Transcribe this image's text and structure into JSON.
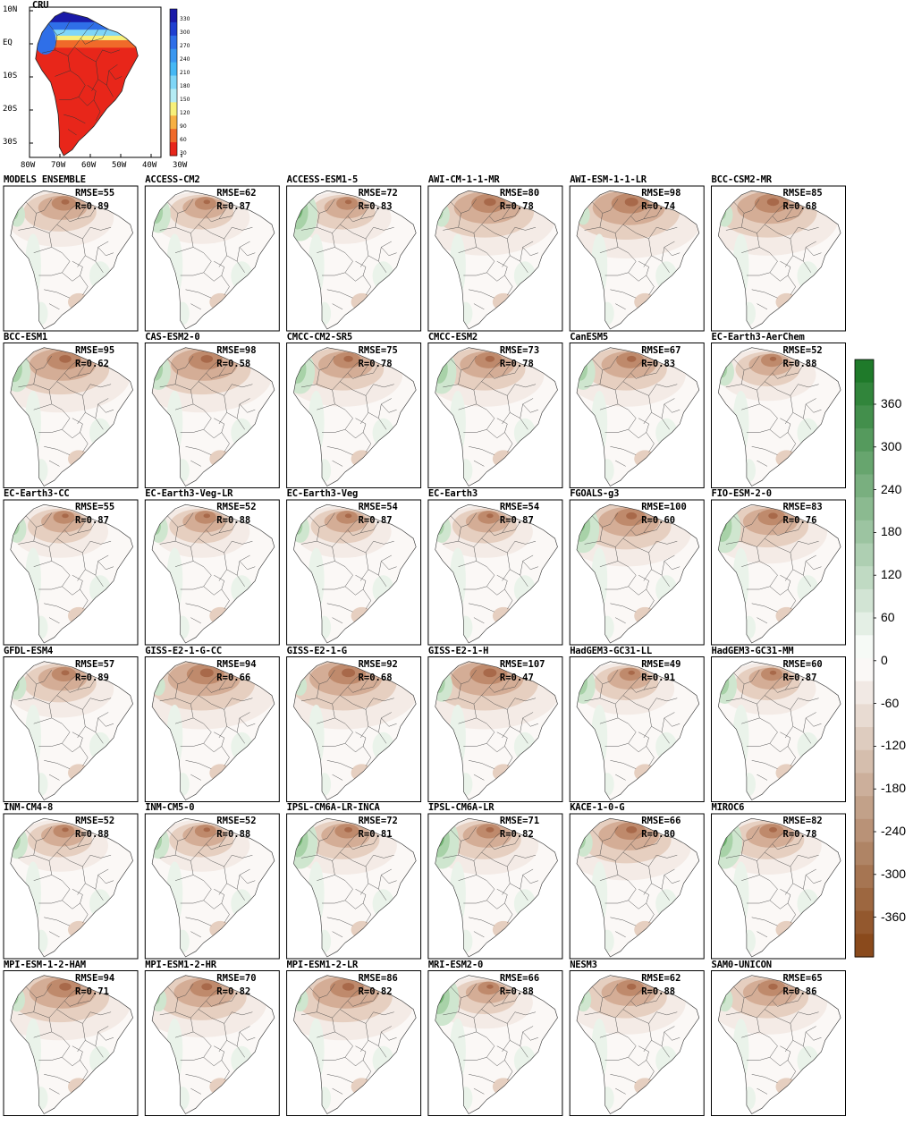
{
  "reference": {
    "title": "CRU",
    "lat_labels": [
      "10N",
      "EQ",
      "10S",
      "20S",
      "30S"
    ],
    "lon_labels": [
      "80W",
      "70W",
      "60W",
      "50W",
      "40W",
      "30W"
    ],
    "colorbar_labels": [
      "330",
      "300",
      "270",
      "240",
      "210",
      "180",
      "150",
      "120",
      "90",
      "60",
      "30"
    ],
    "colorbar_colors": [
      "#1a1aa8",
      "#1f3fd0",
      "#2f6fe8",
      "#3a97f0",
      "#45b8f5",
      "#7fd6f7",
      "#b5ecf5",
      "#f7f07a",
      "#f7b043",
      "#f06a2a",
      "#e8261a"
    ]
  },
  "models": [
    {
      "name": "MODELS ENSEMBLE",
      "rmse": "RMSE=55",
      "r": "R=0.89",
      "dry": 0.6,
      "wet": 0.3
    },
    {
      "name": "ACCESS-CM2",
      "rmse": "RMSE=62",
      "r": "R=0.87",
      "dry": 0.5,
      "wet": 0.6
    },
    {
      "name": "ACCESS-ESM1-5",
      "rmse": "RMSE=72",
      "r": "R=0.83",
      "dry": 0.5,
      "wet": 1.0
    },
    {
      "name": "AWI-CM-1-1-MR",
      "rmse": "RMSE=80",
      "r": "R=0.78",
      "dry": 0.9,
      "wet": 0.3
    },
    {
      "name": "AWI-ESM-1-1-LR",
      "rmse": "RMSE=98",
      "r": "R=0.74",
      "dry": 1.0,
      "wet": 0.2
    },
    {
      "name": "BCC-CSM2-MR",
      "rmse": "RMSE=85",
      "r": "R=0.68",
      "dry": 0.9,
      "wet": 0.3
    },
    {
      "name": "BCC-ESM1",
      "rmse": "RMSE=95",
      "r": "R=0.62",
      "dry": 0.9,
      "wet": 0.7
    },
    {
      "name": "CAS-ESM2-0",
      "rmse": "RMSE=98",
      "r": "R=0.58",
      "dry": 0.9,
      "wet": 0.6
    },
    {
      "name": "CMCC-CM2-SR5",
      "rmse": "RMSE=75",
      "r": "R=0.78",
      "dry": 0.7,
      "wet": 0.8
    },
    {
      "name": "CMCC-ESM2",
      "rmse": "RMSE=73",
      "r": "R=0.78",
      "dry": 0.7,
      "wet": 0.8
    },
    {
      "name": "CanESM5",
      "rmse": "RMSE=67",
      "r": "R=0.83",
      "dry": 0.7,
      "wet": 0.6
    },
    {
      "name": "EC-Earth3-AerChem",
      "rmse": "RMSE=52",
      "r": "R=0.88",
      "dry": 0.5,
      "wet": 0.4
    },
    {
      "name": "EC-Earth3-CC",
      "rmse": "RMSE=55",
      "r": "R=0.87",
      "dry": 0.5,
      "wet": 0.4
    },
    {
      "name": "EC-Earth3-Veg-LR",
      "rmse": "RMSE=52",
      "r": "R=0.88",
      "dry": 0.5,
      "wet": 0.4
    },
    {
      "name": "EC-Earth3-Veg",
      "rmse": "RMSE=54",
      "r": "R=0.87",
      "dry": 0.5,
      "wet": 0.4
    },
    {
      "name": "EC-Earth3",
      "rmse": "RMSE=54",
      "r": "R=0.87",
      "dry": 0.5,
      "wet": 0.4
    },
    {
      "name": "FGOALS-g3",
      "rmse": "RMSE=100",
      "r": "R=0.60",
      "dry": 0.8,
      "wet": 0.9
    },
    {
      "name": "FIO-ESM-2-0",
      "rmse": "RMSE=83",
      "r": "R=0.76",
      "dry": 0.7,
      "wet": 0.9
    },
    {
      "name": "GFDL-ESM4",
      "rmse": "RMSE=57",
      "r": "R=0.89",
      "dry": 0.6,
      "wet": 0.4
    },
    {
      "name": "GISS-E2-1-G-CC",
      "rmse": "RMSE=94",
      "r": "R=0.66",
      "dry": 1.0,
      "wet": 0.2
    },
    {
      "name": "GISS-E2-1-G",
      "rmse": "RMSE=92",
      "r": "R=0.68",
      "dry": 1.0,
      "wet": 0.2
    },
    {
      "name": "GISS-E2-1-H",
      "rmse": "RMSE=107",
      "r": "R=0.47",
      "dry": 1.0,
      "wet": 0.5
    },
    {
      "name": "HadGEM3-GC31-LL",
      "rmse": "RMSE=49",
      "r": "R=0.91",
      "dry": 0.5,
      "wet": 0.6
    },
    {
      "name": "HadGEM3-GC31-MM",
      "rmse": "RMSE=60",
      "r": "R=0.87",
      "dry": 0.5,
      "wet": 0.6
    },
    {
      "name": "INM-CM4-8",
      "rmse": "RMSE=52",
      "r": "R=0.88",
      "dry": 0.5,
      "wet": 0.5
    },
    {
      "name": "INM-CM5-0",
      "rmse": "RMSE=52",
      "r": "R=0.88",
      "dry": 0.5,
      "wet": 0.5
    },
    {
      "name": "IPSL-CM6A-LR-INCA",
      "rmse": "RMSE=72",
      "r": "R=0.81",
      "dry": 0.6,
      "wet": 1.0
    },
    {
      "name": "IPSL-CM6A-LR",
      "rmse": "RMSE=71",
      "r": "R=0.82",
      "dry": 0.6,
      "wet": 1.0
    },
    {
      "name": "KACE-1-0-G",
      "rmse": "RMSE=66",
      "r": "R=0.80",
      "dry": 0.8,
      "wet": 0.4
    },
    {
      "name": "MIROC6",
      "rmse": "RMSE=82",
      "r": "R=0.78",
      "dry": 0.6,
      "wet": 1.0
    },
    {
      "name": "MPI-ESM-1-2-HAM",
      "rmse": "RMSE=94",
      "r": "R=0.71",
      "dry": 0.9,
      "wet": 0.3
    },
    {
      "name": "MPI-ESM1-2-HR",
      "rmse": "RMSE=70",
      "r": "R=0.82",
      "dry": 0.8,
      "wet": 0.3
    },
    {
      "name": "MPI-ESM1-2-LR",
      "rmse": "RMSE=86",
      "r": "R=0.82",
      "dry": 0.9,
      "wet": 0.3
    },
    {
      "name": "MRI-ESM2-0",
      "rmse": "RMSE=66",
      "r": "R=0.88",
      "dry": 0.5,
      "wet": 1.0
    },
    {
      "name": "NESM3",
      "rmse": "RMSE=62",
      "r": "R=0.88",
      "dry": 0.7,
      "wet": 0.3
    },
    {
      "name": "SAM0-UNICON",
      "rmse": "RMSE=65",
      "r": "R=0.86",
      "dry": 0.7,
      "wet": 0.3
    }
  ],
  "bias_colorbar": {
    "labels": [
      "360",
      "300",
      "240",
      "180",
      "120",
      "60",
      "0",
      "-60",
      "-120",
      "-180",
      "-240",
      "-300",
      "-360"
    ],
    "wet_color": "#1f7a2a",
    "dry_color": "#8a4a1c"
  }
}
